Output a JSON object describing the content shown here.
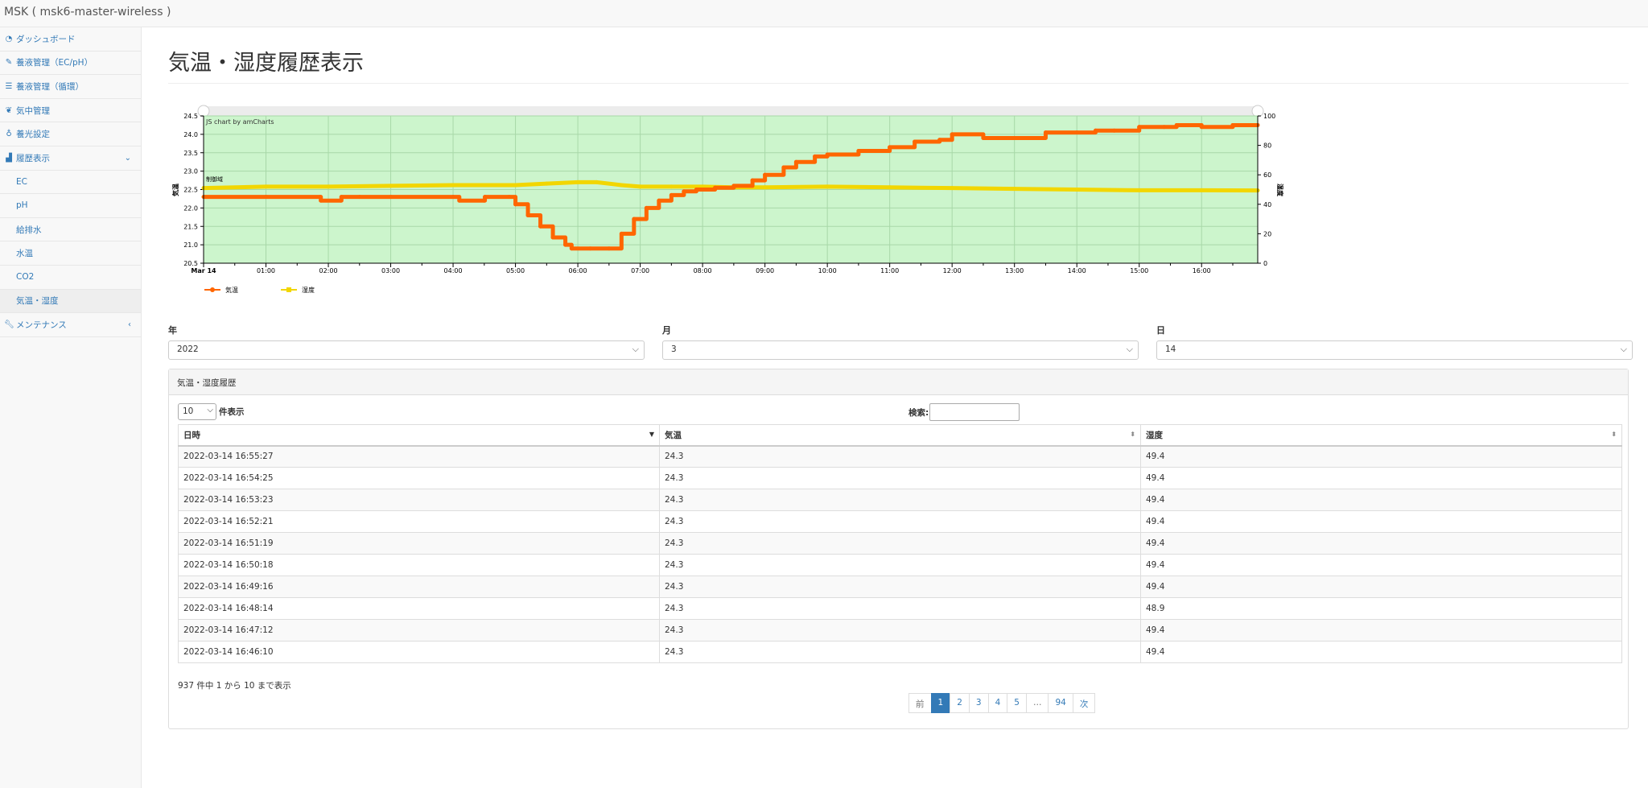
{
  "app": {
    "title": "MSK ( msk6-master-wireless )"
  },
  "sidebar": {
    "items": [
      {
        "label": "ダッシュボード",
        "icon": "dashboard-icon"
      },
      {
        "label": "養液管理（EC/pH）",
        "icon": "pencil-icon"
      },
      {
        "label": "養液管理（循環）",
        "icon": "list-icon"
      },
      {
        "label": "気中管理",
        "icon": "leaf-icon"
      },
      {
        "label": "養光設定",
        "icon": "lightbulb-icon"
      },
      {
        "label": "履歴表示",
        "icon": "line-chart-icon"
      },
      {
        "label": "メンテナンス",
        "icon": "wrench-icon"
      }
    ],
    "history_sub": [
      "EC",
      "pH",
      "給排水",
      "水温",
      "CO2",
      "気温・湿度"
    ]
  },
  "page": {
    "title": "気温・湿度履歴表示"
  },
  "chart_data": {
    "type": "line",
    "credit": "JS chart by amCharts",
    "region_label": "制御域",
    "ylabel": "気温",
    "y2label": "湿度",
    "ylim": [
      20.5,
      24.5
    ],
    "y_ticks": [
      "20.5",
      "21.0",
      "21.5",
      "22.0",
      "22.5",
      "23.0",
      "23.5",
      "24.0",
      "24.5"
    ],
    "y2lim": [
      0,
      100
    ],
    "y2_ticks": [
      "0",
      "20",
      "40",
      "60",
      "80",
      "100"
    ],
    "x_ticks": [
      "Mar 14",
      "01:00",
      "02:00",
      "03:00",
      "04:00",
      "05:00",
      "06:00",
      "07:00",
      "08:00",
      "09:00",
      "10:00",
      "11:00",
      "12:00",
      "13:00",
      "14:00",
      "15:00",
      "16:00"
    ],
    "xlim_hours": [
      0,
      16.9
    ],
    "grid": true,
    "legend_placement": "bottom-left",
    "series": [
      {
        "name": "気温",
        "color": "#ff6600",
        "axis": "left",
        "x": [
          0.0,
          1.0,
          1.87,
          1.88,
          2.2,
          2.21,
          2.5,
          3.0,
          4.0,
          4.1,
          4.5,
          4.51,
          4.9,
          5.0,
          5.2,
          5.4,
          5.6,
          5.8,
          5.9,
          6.2,
          6.5,
          6.7,
          6.9,
          7.1,
          7.3,
          7.5,
          7.7,
          7.9,
          8.2,
          8.5,
          8.8,
          9.0,
          9.3,
          9.5,
          9.8,
          10.0,
          10.5,
          11.0,
          11.4,
          11.8,
          12.0,
          12.5,
          13.0,
          13.5,
          14.0,
          14.3,
          14.6,
          15.0,
          15.4,
          15.6,
          16.0,
          16.5,
          16.9
        ],
        "y": [
          22.3,
          22.3,
          22.3,
          22.2,
          22.2,
          22.3,
          22.3,
          22.3,
          22.3,
          22.2,
          22.2,
          22.3,
          22.3,
          22.1,
          21.8,
          21.5,
          21.2,
          21.0,
          20.9,
          20.9,
          20.9,
          21.3,
          21.7,
          22.0,
          22.2,
          22.35,
          22.45,
          22.5,
          22.55,
          22.6,
          22.75,
          22.9,
          23.1,
          23.25,
          23.4,
          23.45,
          23.55,
          23.65,
          23.8,
          23.85,
          24.0,
          23.9,
          23.9,
          24.05,
          24.05,
          24.1,
          24.1,
          24.2,
          24.2,
          24.25,
          24.2,
          24.25,
          24.25
        ]
      },
      {
        "name": "湿度",
        "color": "#f2d600",
        "axis": "right",
        "x": [
          0.0,
          1.0,
          2.0,
          3.0,
          4.0,
          5.0,
          5.5,
          6.0,
          6.3,
          6.7,
          7.0,
          7.5,
          8.0,
          8.5,
          9.0,
          10.0,
          11.0,
          12.0,
          13.0,
          14.0,
          15.0,
          16.0,
          16.9
        ],
        "y": [
          51,
          52,
          52,
          52.5,
          53,
          53,
          54,
          55,
          55,
          53,
          52,
          52,
          52,
          51.5,
          51.5,
          52,
          51.5,
          51,
          50.5,
          50,
          49.5,
          49.5,
          49.4
        ]
      }
    ]
  },
  "filters": {
    "year": {
      "label": "年",
      "value": "2022"
    },
    "month": {
      "label": "月",
      "value": "3"
    },
    "day": {
      "label": "日",
      "value": "14"
    }
  },
  "table_panel": {
    "heading": "気温・湿度履歴",
    "length_value": "10",
    "length_suffix": "件表示",
    "search_label": "検索:",
    "columns": [
      "日時",
      "気温",
      "湿度"
    ],
    "rows": [
      [
        "2022-03-14 16:55:27",
        "24.3",
        "49.4"
      ],
      [
        "2022-03-14 16:54:25",
        "24.3",
        "49.4"
      ],
      [
        "2022-03-14 16:53:23",
        "24.3",
        "49.4"
      ],
      [
        "2022-03-14 16:52:21",
        "24.3",
        "49.4"
      ],
      [
        "2022-03-14 16:51:19",
        "24.3",
        "49.4"
      ],
      [
        "2022-03-14 16:50:18",
        "24.3",
        "49.4"
      ],
      [
        "2022-03-14 16:49:16",
        "24.3",
        "49.4"
      ],
      [
        "2022-03-14 16:48:14",
        "24.3",
        "48.9"
      ],
      [
        "2022-03-14 16:47:12",
        "24.3",
        "49.4"
      ],
      [
        "2022-03-14 16:46:10",
        "24.3",
        "49.4"
      ]
    ],
    "info": "937 件中 1 から 10 まで表示",
    "pagination": {
      "prev": "前",
      "pages": [
        "1",
        "2",
        "3",
        "4",
        "5",
        "…",
        "94"
      ],
      "active": "1",
      "next": "次"
    }
  }
}
